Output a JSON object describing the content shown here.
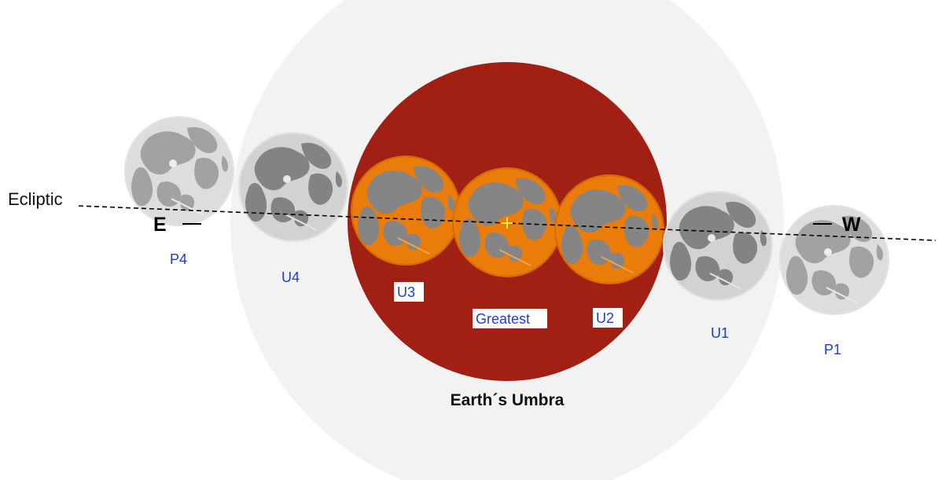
{
  "labels": {
    "ecliptic": "Ecliptic",
    "east": "E",
    "west": "W",
    "umbra": "Earth´s Umbra"
  },
  "moons": [
    {
      "id": "P4",
      "label": "P4",
      "state": "penumbral"
    },
    {
      "id": "U4",
      "label": "U4",
      "state": "penumbral"
    },
    {
      "id": "U3",
      "label": "U3",
      "state": "umbral"
    },
    {
      "id": "Greatest",
      "label": "Greatest",
      "state": "umbral"
    },
    {
      "id": "U2",
      "label": "U2",
      "state": "umbral"
    },
    {
      "id": "U1",
      "label": "U1",
      "state": "penumbral"
    },
    {
      "id": "P1",
      "label": "P1",
      "state": "penumbral"
    }
  ],
  "colors": {
    "penumbra": "#f2f2f2",
    "umbra": "#a21f14",
    "umbral_moon": "#ea7c0a",
    "moon_surface": "#d2d2d2",
    "maria": "#828282",
    "label_blue": "#1f3fc4",
    "center_marker": "#ffe74d"
  }
}
